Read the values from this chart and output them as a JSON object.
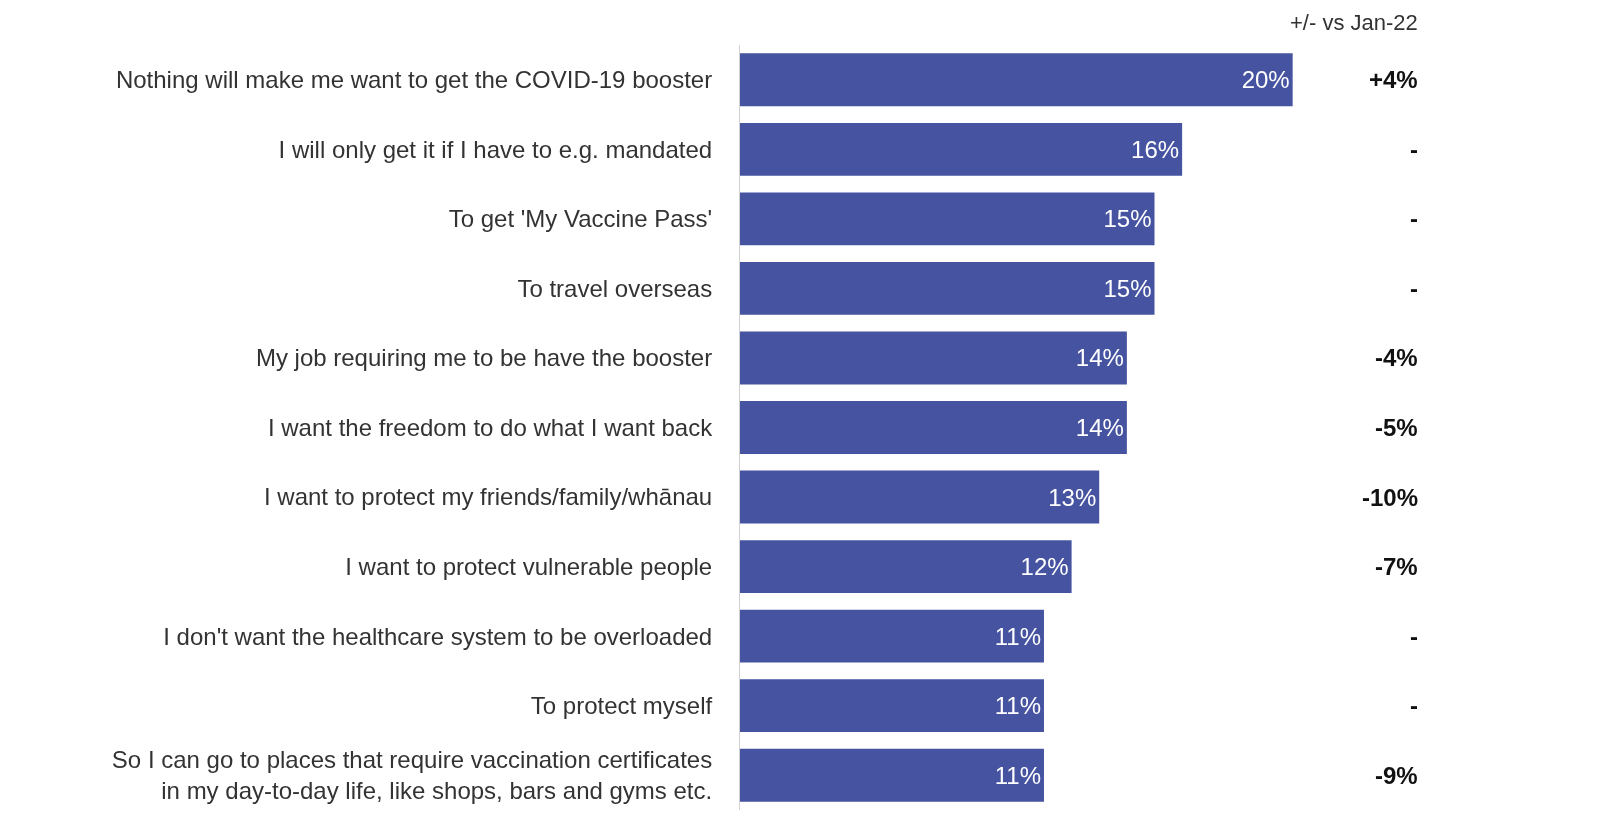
{
  "chart_data": {
    "type": "bar",
    "orientation": "horizontal",
    "categories": [
      "Nothing will make me want to get the COVID-19 booster",
      "I will only get it if I have to e.g. mandated",
      "To get 'My Vaccine Pass'",
      "To travel overseas",
      "My job requiring me to be have the booster",
      "I want the freedom to do what I want back",
      "I want to protect my friends/family/whānau",
      "I want to protect vulnerable people",
      "I don't want the healthcare system to be overloaded",
      "To protect myself",
      "So I can go to places that require vaccination certificates\nin my day-to-day life, like shops, bars and gyms etc."
    ],
    "values": [
      20,
      16,
      15,
      15,
      14,
      14,
      13,
      12,
      11,
      11,
      11
    ],
    "value_labels": [
      "20%",
      "16%",
      "15%",
      "15%",
      "14%",
      "14%",
      "13%",
      "12%",
      "11%",
      "11%",
      "11%"
    ],
    "color": "#4653a0",
    "annotations": [
      "+/- vs Jan-22",
      "+4%",
      "-",
      "-",
      "-",
      "-4%",
      "-5%",
      "-10%",
      "-7%",
      "-",
      "-",
      "-9%"
    ]
  }
}
